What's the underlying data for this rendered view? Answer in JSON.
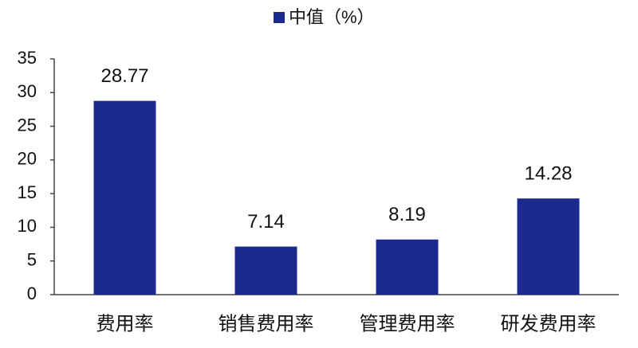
{
  "chart_data": {
    "type": "bar",
    "legend": "中值（%）",
    "categories": [
      "费用率",
      "销售费用率",
      "管理费用率",
      "研发费用率"
    ],
    "values": [
      28.77,
      7.14,
      8.19,
      14.28
    ],
    "color": "#1c2a8e",
    "ylim": [
      0,
      35
    ],
    "yticks": [
      0,
      5,
      10,
      15,
      20,
      25,
      30,
      35
    ],
    "grid": false,
    "legend_position": "top"
  }
}
